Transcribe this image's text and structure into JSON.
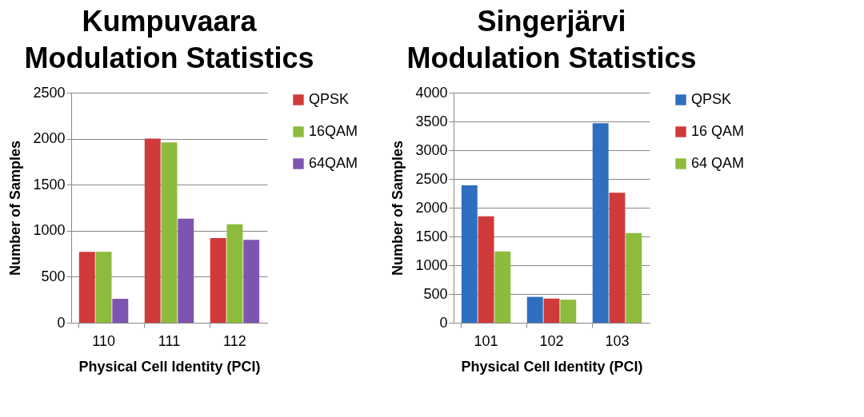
{
  "chart_data": [
    {
      "type": "bar",
      "title": "Kumpuvaara\nModulation Statistics",
      "xlabel": "Physical Cell Identity (PCI)",
      "ylabel": "Number of Samples",
      "categories": [
        "110",
        "111",
        "112"
      ],
      "series": [
        {
          "name": "QPSK",
          "color": "#d03a3a",
          "values": [
            770,
            2000,
            920
          ]
        },
        {
          "name": "16QAM",
          "color": "#8dbb3c",
          "values": [
            770,
            1960,
            1070
          ]
        },
        {
          "name": "64QAM",
          "color": "#7d55b0",
          "values": [
            260,
            1130,
            900
          ]
        }
      ],
      "ylim": [
        0,
        2500
      ],
      "yticks": [
        0,
        500,
        1000,
        1500,
        2000,
        2500
      ],
      "grid": "y",
      "legend": "right"
    },
    {
      "type": "bar",
      "title": "Singerjärvi\nModulation Statistics",
      "xlabel": "Physical Cell Identity (PCI)",
      "ylabel": "Number of Samples",
      "categories": [
        "101",
        "102",
        "103"
      ],
      "series": [
        {
          "name": "QPSK",
          "color": "#2f6fc0",
          "values": [
            2390,
            450,
            3470
          ]
        },
        {
          "name": "16 QAM",
          "color": "#d03a3a",
          "values": [
            1850,
            420,
            2260
          ]
        },
        {
          "name": "64 QAM",
          "color": "#8dbb3c",
          "values": [
            1240,
            400,
            1560
          ]
        }
      ],
      "ylim": [
        0,
        4000
      ],
      "yticks": [
        0,
        500,
        1000,
        1500,
        2000,
        2500,
        3000,
        3500,
        4000
      ],
      "grid": "y",
      "legend": "right"
    }
  ]
}
